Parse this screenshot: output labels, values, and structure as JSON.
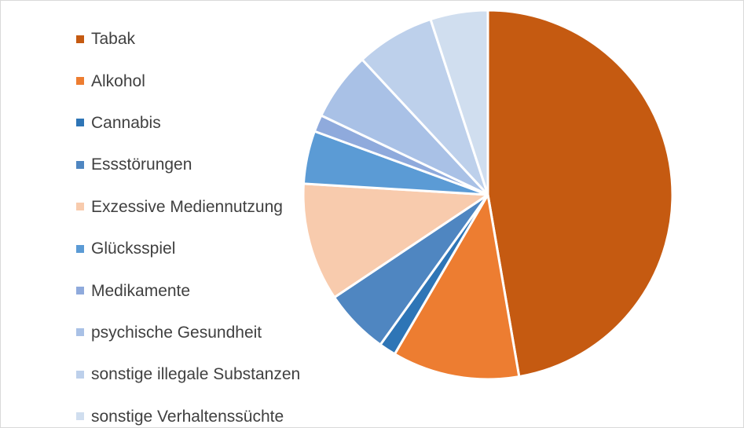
{
  "chart_data": {
    "type": "pie",
    "title": "",
    "legend_position": "left",
    "slices": [
      {
        "label": "Tabak",
        "value": 48.0,
        "color": "#c55a11"
      },
      {
        "label": "Alkohol",
        "value": 11.3,
        "color": "#ed7d31"
      },
      {
        "label": "Cannabis",
        "value": 1.5,
        "color": "#2e75b6"
      },
      {
        "label": "Essstörungen",
        "value": 5.8,
        "color": "#4f86c1"
      },
      {
        "label": "Exzessive Mediennutzung",
        "value": 10.5,
        "color": "#f8cbad"
      },
      {
        "label": "Glücksspiel",
        "value": 4.7,
        "color": "#5b9bd5"
      },
      {
        "label": "Medikamente",
        "value": 1.5,
        "color": "#8faadc"
      },
      {
        "label": "psychische Gesundheit",
        "value": 6.1,
        "color": "#a9c1e6"
      },
      {
        "label": "sonstige illegale Substanzen",
        "value": 7.0,
        "color": "#bdd0eb"
      },
      {
        "label": "sonstige Verhaltenssüchte",
        "value": 5.1,
        "color": "#d0deef"
      }
    ]
  }
}
